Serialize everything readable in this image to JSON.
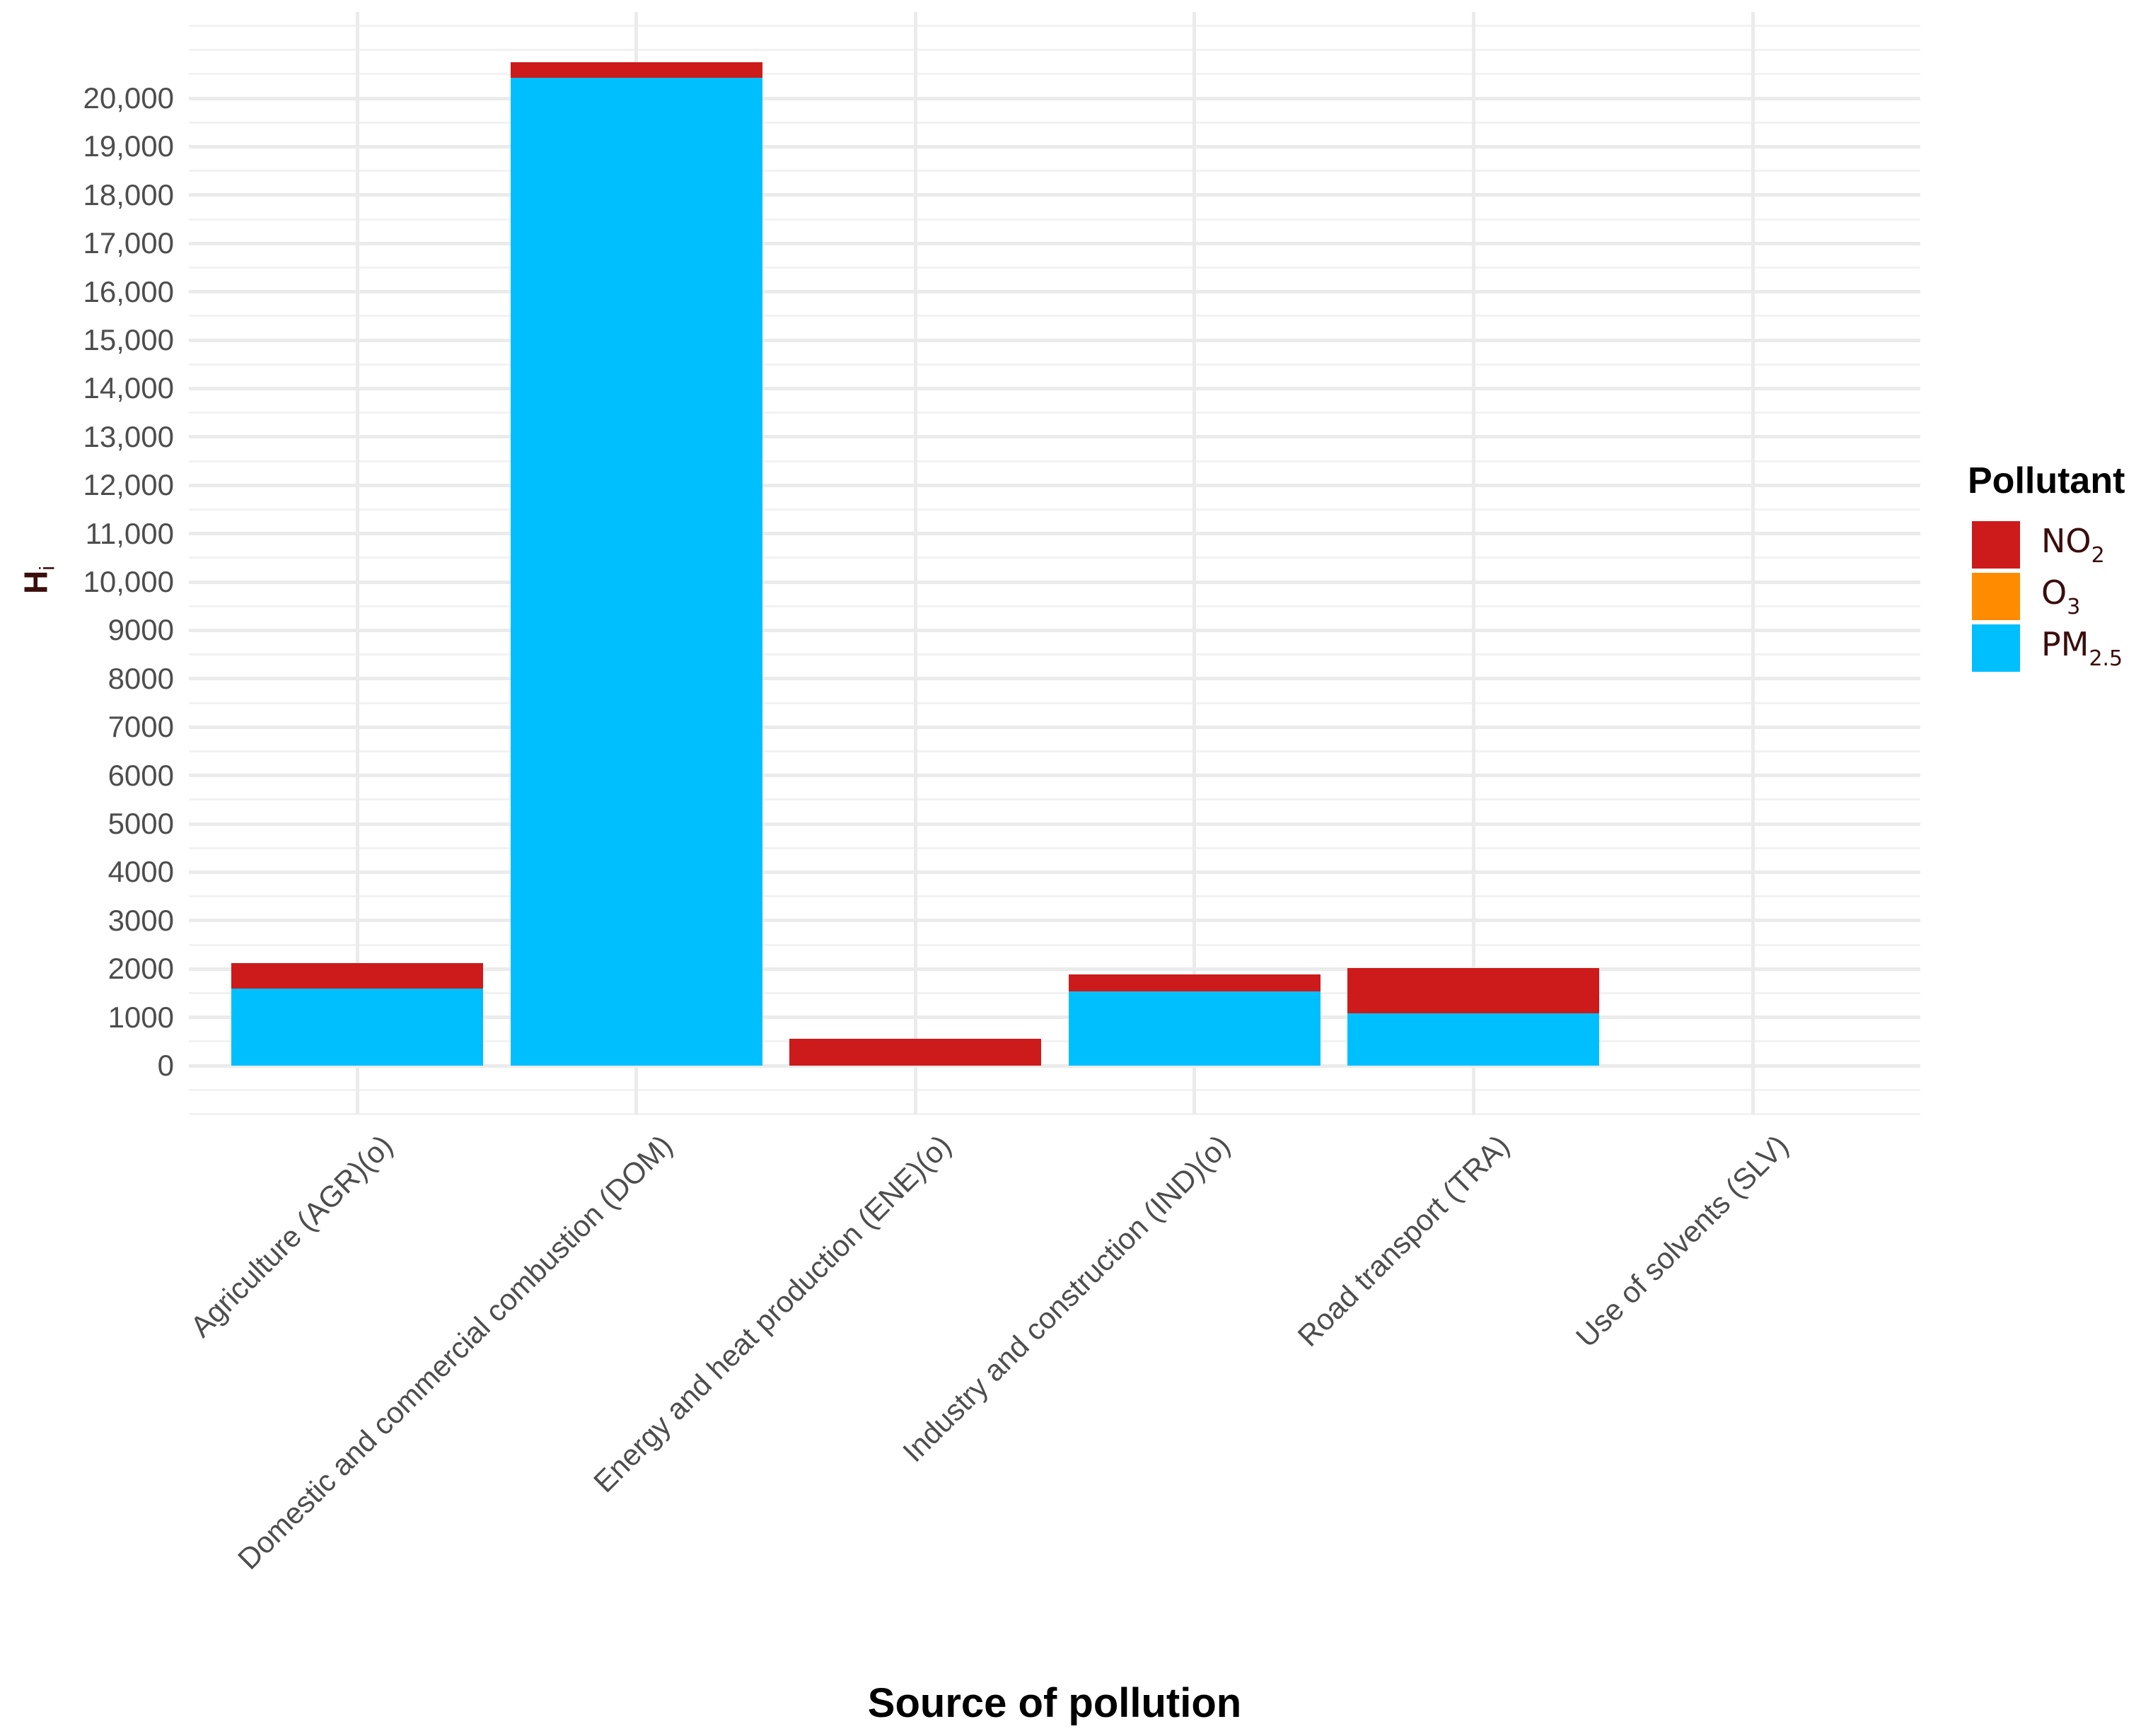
{
  "chart_data": {
    "type": "bar",
    "stacked": true,
    "title": "",
    "xlabel": "Source of pollution",
    "ylabel": "H",
    "ylabel_subscript": "i",
    "categories": [
      "Agriculture (AGR)(o)",
      "Domestic and commercial combustion (DOM)",
      "Energy and heat production (ENE)(o)",
      "Industry and construction (IND)(o)",
      "Road transport (TRA)",
      "Use of solvents (SLV)"
    ],
    "series": [
      {
        "name": "PM2.5",
        "label_main": "PM",
        "label_sub": "2.5",
        "color": "#00bfff",
        "values": [
          1590,
          20420,
          0,
          1530,
          1080,
          0
        ]
      },
      {
        "name": "O3",
        "label_main": "O",
        "label_sub": "3",
        "color": "#ff8c00",
        "values": [
          0,
          0,
          0,
          0,
          0,
          0
        ]
      },
      {
        "name": "NO2",
        "label_main": "NO",
        "label_sub": "2",
        "color": "#cd1a1a",
        "values": [
          530,
          330,
          560,
          350,
          940,
          0
        ]
      }
    ],
    "stack_order_bottom_to_top": [
      "PM2.5",
      "O3",
      "NO2"
    ],
    "ylim": [
      -1000,
      21780
    ],
    "yticks": [
      0,
      1000,
      2000,
      3000,
      4000,
      5000,
      6000,
      7000,
      8000,
      9000,
      10000,
      11000,
      12000,
      13000,
      14000,
      15000,
      16000,
      17000,
      18000,
      19000,
      20000
    ],
    "ytick_labels": [
      "0",
      "1000",
      "2000",
      "3000",
      "4000",
      "5000",
      "6000",
      "7000",
      "8000",
      "9000",
      "10,000",
      "11,000",
      "12,000",
      "13,000",
      "14,000",
      "15,000",
      "16,000",
      "17,000",
      "18,000",
      "19,000",
      "20,000"
    ],
    "grid": true,
    "legend": {
      "title": "Pollutant",
      "position": "right",
      "order": [
        "NO2",
        "O3",
        "PM2.5"
      ]
    }
  }
}
